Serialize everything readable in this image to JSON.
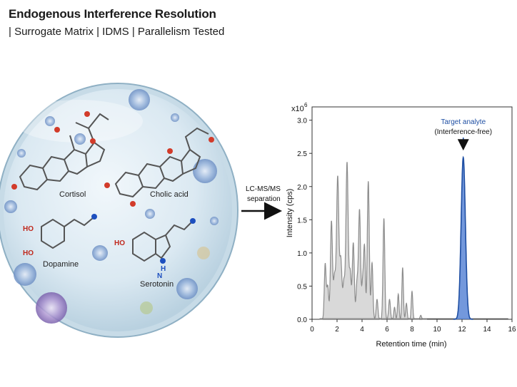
{
  "header": {
    "title": "Endogenous Interference Resolution",
    "subtitle": "| Surrogate Matrix | IDMS | Parallelism Tested"
  },
  "sample_dish": {
    "molecules": [
      "Cortisol",
      "Cholic acid",
      "Dopamine",
      "Serotonin"
    ],
    "atom_labels": {
      "hydroxyl": "HO",
      "amine": "H",
      "nitrogen": "N"
    }
  },
  "arrow": {
    "label_line1": "LC-MS/MS",
    "label_line2": "separation"
  },
  "colors": {
    "matrix_peaks": "#8c8c8c",
    "matrix_fill": "#d9d9d9",
    "analyte": "#1f4fa3",
    "analyte_fill": "#5b86d6",
    "dish": "#cfe3ee"
  },
  "chart_data": {
    "type": "line",
    "xlabel": "Retention time (min)",
    "ylabel": "Intensity (cps)",
    "y_multiplier": "x10",
    "y_exponent": "6",
    "xlim": [
      0,
      16
    ],
    "ylim": [
      0,
      3.2
    ],
    "x_ticks": [
      "0",
      "2",
      "4",
      "6",
      "8",
      "10",
      "12",
      "14",
      "16"
    ],
    "y_ticks": [
      "0.0",
      "0.5",
      "1.0",
      "1.5",
      "2.0",
      "2.5",
      "3.0"
    ],
    "annotation": {
      "line1": "Target analyte",
      "line2": "(Interference-free)",
      "x": 12.1
    },
    "series": [
      {
        "role": "matrix",
        "peaks": [
          {
            "x": 1.05,
            "y": 0.82,
            "w": 0.07
          },
          {
            "x": 1.25,
            "y": 0.5,
            "w": 0.08
          },
          {
            "x": 1.55,
            "y": 1.47,
            "w": 0.08
          },
          {
            "x": 1.8,
            "y": 0.65,
            "w": 0.09
          },
          {
            "x": 2.05,
            "y": 2.13,
            "w": 0.09
          },
          {
            "x": 2.3,
            "y": 0.9,
            "w": 0.09
          },
          {
            "x": 2.55,
            "y": 0.55,
            "w": 0.08
          },
          {
            "x": 2.8,
            "y": 2.36,
            "w": 0.09
          },
          {
            "x": 3.05,
            "y": 0.7,
            "w": 0.08
          },
          {
            "x": 3.3,
            "y": 1.15,
            "w": 0.08
          },
          {
            "x": 3.6,
            "y": 0.55,
            "w": 0.08
          },
          {
            "x": 3.8,
            "y": 1.63,
            "w": 0.08
          },
          {
            "x": 4.05,
            "y": 0.55,
            "w": 0.08
          },
          {
            "x": 4.2,
            "y": 1.02,
            "w": 0.07
          },
          {
            "x": 4.5,
            "y": 2.08,
            "w": 0.08
          },
          {
            "x": 4.8,
            "y": 0.85,
            "w": 0.07
          },
          {
            "x": 5.2,
            "y": 0.3,
            "w": 0.07
          },
          {
            "x": 5.75,
            "y": 1.52,
            "w": 0.07
          },
          {
            "x": 6.2,
            "y": 0.3,
            "w": 0.07
          },
          {
            "x": 6.6,
            "y": 0.18,
            "w": 0.06
          },
          {
            "x": 6.9,
            "y": 0.38,
            "w": 0.06
          },
          {
            "x": 7.25,
            "y": 0.78,
            "w": 0.06
          },
          {
            "x": 7.55,
            "y": 0.24,
            "w": 0.06
          },
          {
            "x": 8.0,
            "y": 0.42,
            "w": 0.06
          },
          {
            "x": 8.7,
            "y": 0.06,
            "w": 0.06
          }
        ]
      },
      {
        "role": "analyte",
        "peaks": [
          {
            "x": 12.1,
            "y": 2.44,
            "w": 0.17
          }
        ]
      }
    ]
  }
}
